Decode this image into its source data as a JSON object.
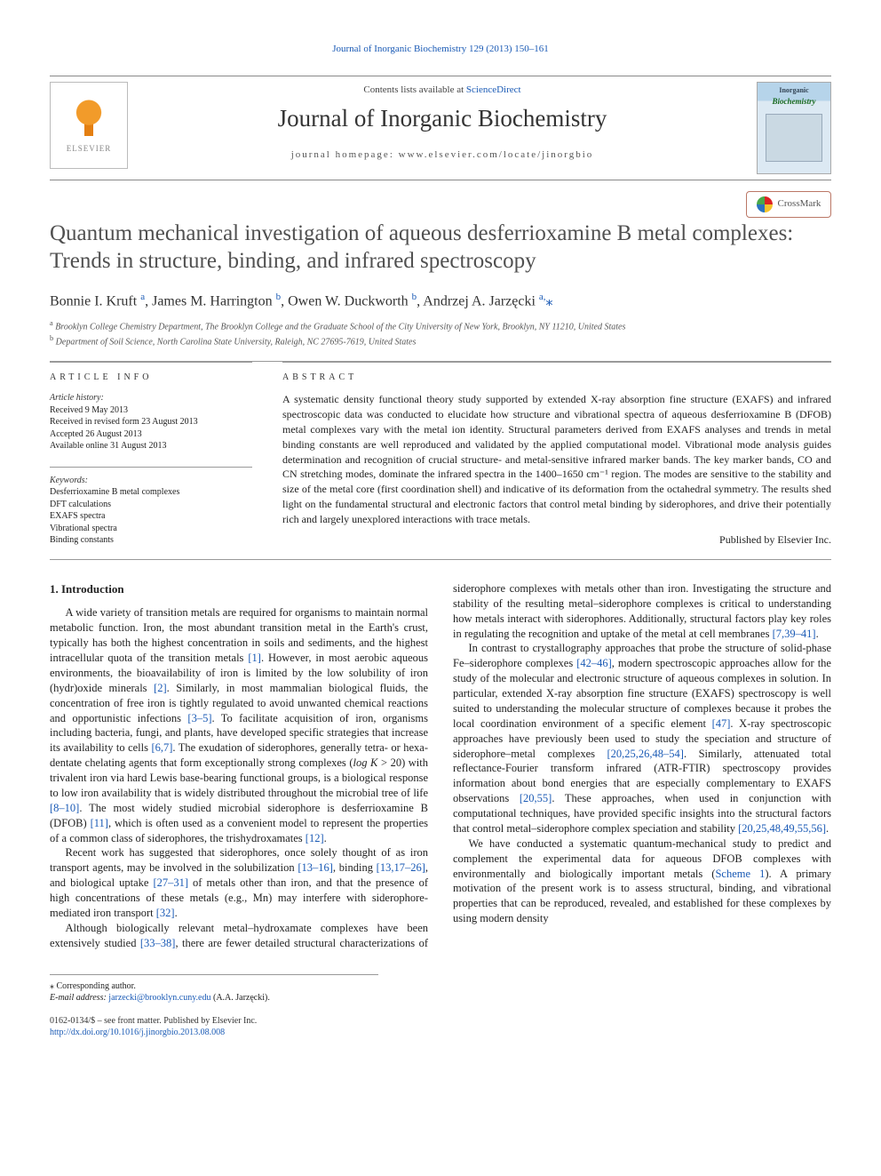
{
  "running_header": {
    "journal": "Journal of Inorganic Biochemistry",
    "volume_issue": "129 (2013) 150–161"
  },
  "mast": {
    "contents_prefix": "Contents lists available at ",
    "contents_link": "ScienceDirect",
    "journal_title": "Journal of Inorganic Biochemistry",
    "homepage_label": "journal homepage: ",
    "homepage_url": "www.elsevier.com/locate/jinorgbio",
    "publisher": "ELSEVIER",
    "cover_line1": "Inorganic",
    "cover_line2": "Biochemistry"
  },
  "colors": {
    "link": "#1a5ab5",
    "rule": "#999999",
    "text": "#222222",
    "title_gray": "#505050",
    "publisher_orange": "#e47f11"
  },
  "typography": {
    "body_family": "Georgia, 'Times New Roman', serif",
    "body_size_pt": 9,
    "title_size_pt": 18,
    "journal_title_size_pt": 20
  },
  "article": {
    "title": "Quantum mechanical investigation of aqueous desferrioxamine B metal complexes: Trends in structure, binding, and infrared spectroscopy",
    "crossmark_label": "CrossMark",
    "authors": [
      {
        "name": "Bonnie I. Kruft",
        "affil": "a"
      },
      {
        "name": "James M. Harrington",
        "affil": "b"
      },
      {
        "name": "Owen W. Duckworth",
        "affil": "b"
      },
      {
        "name": "Andrzej A. Jarzęcki",
        "affil": "a",
        "corresponding": true
      }
    ],
    "authors_line": "Bonnie I. Kruft ",
    "affiliations": {
      "a": "Brooklyn College Chemistry Department, The Brooklyn College and the Graduate School of the City University of New York, Brooklyn, NY 11210, United States",
      "b": "Department of Soil Science, North Carolina State University, Raleigh, NC 27695-7619, United States"
    }
  },
  "article_info": {
    "heading": "article info",
    "history_label": "Article history:",
    "history": [
      "Received 9 May 2013",
      "Received in revised form 23 August 2013",
      "Accepted 26 August 2013",
      "Available online 31 August 2013"
    ],
    "keywords_label": "Keywords:",
    "keywords": [
      "Desferrioxamine B metal complexes",
      "DFT calculations",
      "EXAFS spectra",
      "Vibrational spectra",
      "Binding constants"
    ]
  },
  "abstract": {
    "heading": "abstract",
    "text": "A systematic density functional theory study supported by extended X-ray absorption fine structure (EXAFS) and infrared spectroscopic data was conducted to elucidate how structure and vibrational spectra of aqueous desferrioxamine B (DFOB) metal complexes vary with the metal ion identity. Structural parameters derived from EXAFS analyses and trends in metal binding constants are well reproduced and validated by the applied computational model. Vibrational mode analysis guides determination and recognition of crucial structure- and metal-sensitive infrared marker bands. The key marker bands, CO and CN stretching modes, dominate the infrared spectra in the 1400–1650 cm⁻¹ region. The modes are sensitive to the stability and size of the metal core (first coordination shell) and indicative of its deformation from the octahedral symmetry. The results shed light on the fundamental structural and electronic factors that control metal binding by siderophores, and drive their potentially rich and largely unexplored interactions with trace metals.",
    "publisher_line": "Published by Elsevier Inc."
  },
  "intro": {
    "heading": "1. Introduction",
    "p1": "A wide variety of transition metals are required for organisms to maintain normal metabolic function. Iron, the most abundant transition metal in the Earth's crust, typically has both the highest concentration in soils and sediments, and the highest intracellular quota of the transition metals [1]. However, in most aerobic aqueous environments, the bioavailability of iron is limited by the low solubility of iron (hydr)oxide minerals [2]. Similarly, in most mammalian biological fluids, the concentration of free iron is tightly regulated to avoid unwanted chemical reactions and opportunistic infections [3–5]. To facilitate acquisition of iron, organisms including bacteria, fungi, and plants, have developed specific strategies that increase its availability to cells [6,7]. The exudation of siderophores, generally tetra- or hexa-dentate chelating agents that form exceptionally strong complexes (log K > 20) with trivalent iron via hard Lewis base-bearing functional groups, is a biological response to low iron availability that is widely distributed throughout the microbial tree of life [8–10]. The most widely studied microbial siderophore is desferrioxamine B (DFOB) [11], which is often used as a convenient model to represent the properties of a common class of siderophores, the trishydroxamates [12].",
    "p2": "Recent work has suggested that siderophores, once solely thought of as iron transport agents, may be involved in the solubilization [13–16], binding [13,17–26], and biological uptake [27–31] of metals other than iron, and that the presence of high concentrations of these metals (e.g., Mn) may interfere with siderophore-mediated iron transport [32].",
    "p3": "Although biologically relevant metal–hydroxamate complexes have been extensively studied [33–38], there are fewer detailed structural characterizations of siderophore complexes with metals other than iron. Investigating the structure and stability of the resulting metal–siderophore complexes is critical to understanding how metals interact with siderophores. Additionally, structural factors play key roles in regulating the recognition and uptake of the metal at cell membranes [7,39–41].",
    "p4": "In contrast to crystallography approaches that probe the structure of solid-phase Fe–siderophore complexes [42–46], modern spectroscopic approaches allow for the study of the molecular and electronic structure of aqueous complexes in solution. In particular, extended X-ray absorption fine structure (EXAFS) spectroscopy is well suited to understanding the molecular structure of complexes because it probes the local coordination environment of a specific element [47]. X-ray spectroscopic approaches have previously been used to study the speciation and structure of siderophore–metal complexes [20,25,26,48–54]. Similarly, attenuated total reflectance-Fourier transform infrared (ATR-FTIR) spectroscopy provides information about bond energies that are especially complementary to EXAFS observations [20,55]. These approaches, when used in conjunction with computational techniques, have provided specific insights into the structural factors that control metal–siderophore complex speciation and stability [20,25,48,49,55,56].",
    "p5": "We have conducted a systematic quantum-mechanical study to predict and complement the experimental data for aqueous DFOB complexes with environmentally and biologically important metals (Scheme 1). A primary motivation of the present work is to assess structural, binding, and vibrational properties that can be reproduced, revealed, and established for these complexes by using modern density",
    "refs": {
      "r1": "[1]",
      "r2": "[2]",
      "r3_5": "[3–5]",
      "r6_7": "[6,7]",
      "r8_10": "[8–10]",
      "r11": "[11]",
      "r12": "[12]",
      "r13_16": "[13–16]",
      "r13_17_26": "[13,17–26]",
      "r27_31": "[27–31]",
      "r32": "[32]",
      "r33_38": "[33–38]",
      "r7_39_41": "[7,39–41]",
      "r42_46": "[42–46]",
      "r47": "[47]",
      "r20_25_26_48_54": "[20,25,26,48–54]",
      "r20_55": "[20,55]",
      "r20_25_48_49_55_56": "[20,25,48,49,55,56]",
      "scheme1": "Scheme 1"
    }
  },
  "footnotes": {
    "corresponding": "Corresponding author.",
    "email_label": "E-mail address:",
    "email": "jarzecki@brooklyn.cuny.edu",
    "email_owner": "(A.A. Jarzęcki)."
  },
  "front_matter": {
    "issn_line": "0162-0134/$ – see front matter. Published by Elsevier Inc.",
    "doi": "http://dx.doi.org/10.1016/j.jinorgbio.2013.08.008"
  }
}
